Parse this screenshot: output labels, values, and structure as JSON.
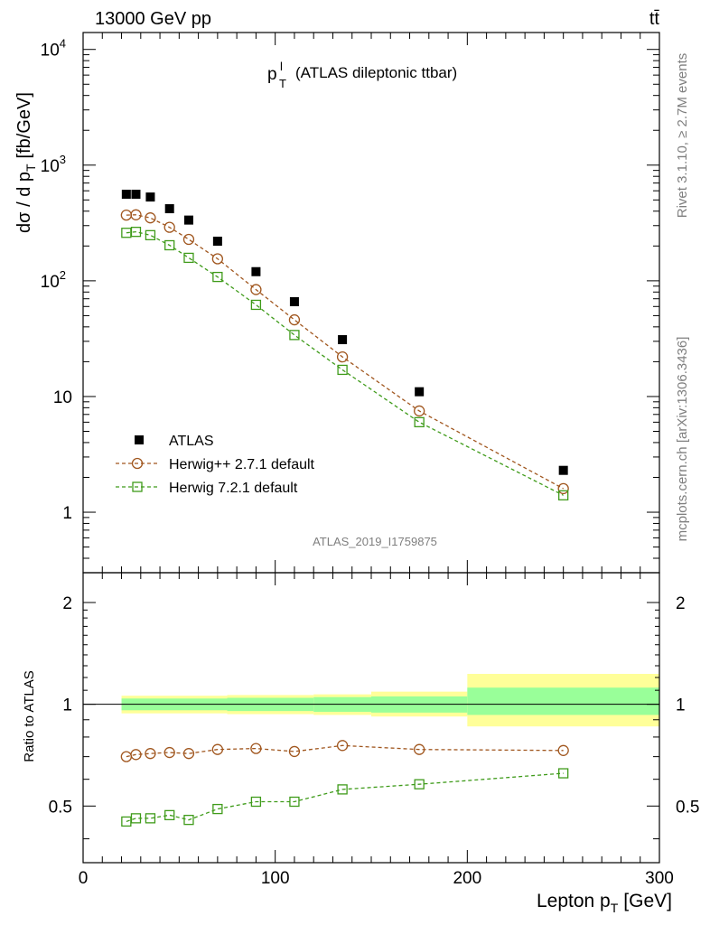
{
  "header": {
    "process": "13000 GeV pp",
    "channel": "tt̄",
    "observable_main": "p",
    "observable_sup": "l",
    "observable_sub": "T",
    "observable_rest": "(ATLAS dileptonic ttbar)",
    "analysis_id": "ATLAS_2019_I1759875"
  },
  "side_labels": {
    "rivet": "Rivet 3.1.10, ≥ 2.7M events",
    "mcplots": "mcplots.cern.ch [arXiv:1306.3436]"
  },
  "axes": {
    "ylabel_main": "dσ / d p",
    "ylabel_main_sub": "T",
    "ylabel_main_unit": "[fb/GeV]",
    "ylabel_ratio": "Ratio to ATLAS",
    "xlabel": "Lepton p",
    "xlabel_sub": "T",
    "xlabel_unit": "[GeV]"
  },
  "legend": {
    "data": "ATLAS",
    "mc1": "Herwig++ 2.7.1 default",
    "mc2": "Herwig 7.2.1 default"
  },
  "colors": {
    "data": "#000000",
    "mc1": "#a0561e",
    "mc2": "#3f9b1a",
    "band_inner": "#99ff99",
    "band_outer": "#ffff99"
  },
  "chart_data": [
    {
      "type": "scatter",
      "panel": "main",
      "xlim": [
        0,
        300
      ],
      "ylim": [
        0.3,
        14000
      ],
      "yscale": "log",
      "xticks": [
        0,
        100,
        200,
        300
      ],
      "yticks": [
        {
          "v": 1,
          "label": "1"
        },
        {
          "v": 10,
          "label": "10"
        },
        {
          "v": 100,
          "label": "10",
          "exp": "2"
        },
        {
          "v": 1000,
          "label": "10",
          "exp": "3"
        },
        {
          "v": 10000,
          "label": "10",
          "exp": "4"
        }
      ],
      "series": [
        {
          "name": "ATLAS",
          "x": [
            22.5,
            27.5,
            35,
            45,
            55,
            70,
            90,
            110,
            135,
            175,
            250
          ],
          "y": [
            560,
            560,
            530,
            420,
            335,
            220,
            120,
            66,
            31,
            11,
            2.3
          ]
        },
        {
          "name": "Herwig++ 2.7.1 default",
          "x": [
            22.5,
            27.5,
            35,
            45,
            55,
            70,
            90,
            110,
            135,
            175,
            250
          ],
          "y": [
            370,
            372,
            350,
            290,
            228,
            155,
            84,
            46,
            22,
            7.5,
            1.6
          ]
        },
        {
          "name": "Herwig 7.2.1 default",
          "x": [
            22.5,
            27.5,
            35,
            45,
            55,
            70,
            90,
            110,
            135,
            175,
            250
          ],
          "y": [
            260,
            265,
            248,
            203,
            158,
            108,
            62,
            34,
            17,
            6.0,
            1.4
          ]
        }
      ]
    },
    {
      "type": "scatter",
      "panel": "ratio",
      "xlim": [
        0,
        300
      ],
      "ylim": [
        0.34,
        2.45
      ],
      "yscale": "log",
      "yticks": [
        {
          "v": 0.5,
          "label": "0.5"
        },
        {
          "v": 1,
          "label": "1"
        },
        {
          "v": 2,
          "label": "2"
        }
      ],
      "bands": [
        {
          "xmin": 20,
          "xmax": 75,
          "inner": [
            0.96,
            1.04
          ],
          "outer": [
            0.94,
            1.06
          ]
        },
        {
          "xmin": 75,
          "xmax": 120,
          "inner": [
            0.955,
            1.045
          ],
          "outer": [
            0.935,
            1.065
          ]
        },
        {
          "xmin": 120,
          "xmax": 150,
          "inner": [
            0.95,
            1.05
          ],
          "outer": [
            0.93,
            1.07
          ]
        },
        {
          "xmin": 150,
          "xmax": 200,
          "inner": [
            0.945,
            1.055
          ],
          "outer": [
            0.92,
            1.09
          ]
        },
        {
          "xmin": 200,
          "xmax": 300,
          "inner": [
            0.93,
            1.12
          ],
          "outer": [
            0.86,
            1.23
          ]
        }
      ],
      "series": [
        {
          "name": "Herwig++ 2.7.1 default",
          "x": [
            22.5,
            27.5,
            35,
            45,
            55,
            70,
            90,
            110,
            135,
            175,
            250
          ],
          "y": [
            0.7,
            0.71,
            0.715,
            0.72,
            0.715,
            0.735,
            0.74,
            0.725,
            0.755,
            0.735,
            0.73
          ]
        },
        {
          "name": "Herwig 7.2.1 default",
          "x": [
            22.5,
            27.5,
            35,
            45,
            55,
            70,
            90,
            110,
            135,
            175,
            250
          ],
          "y": [
            0.45,
            0.46,
            0.46,
            0.47,
            0.455,
            0.49,
            0.515,
            0.515,
            0.56,
            0.58,
            0.625
          ]
        }
      ]
    }
  ]
}
